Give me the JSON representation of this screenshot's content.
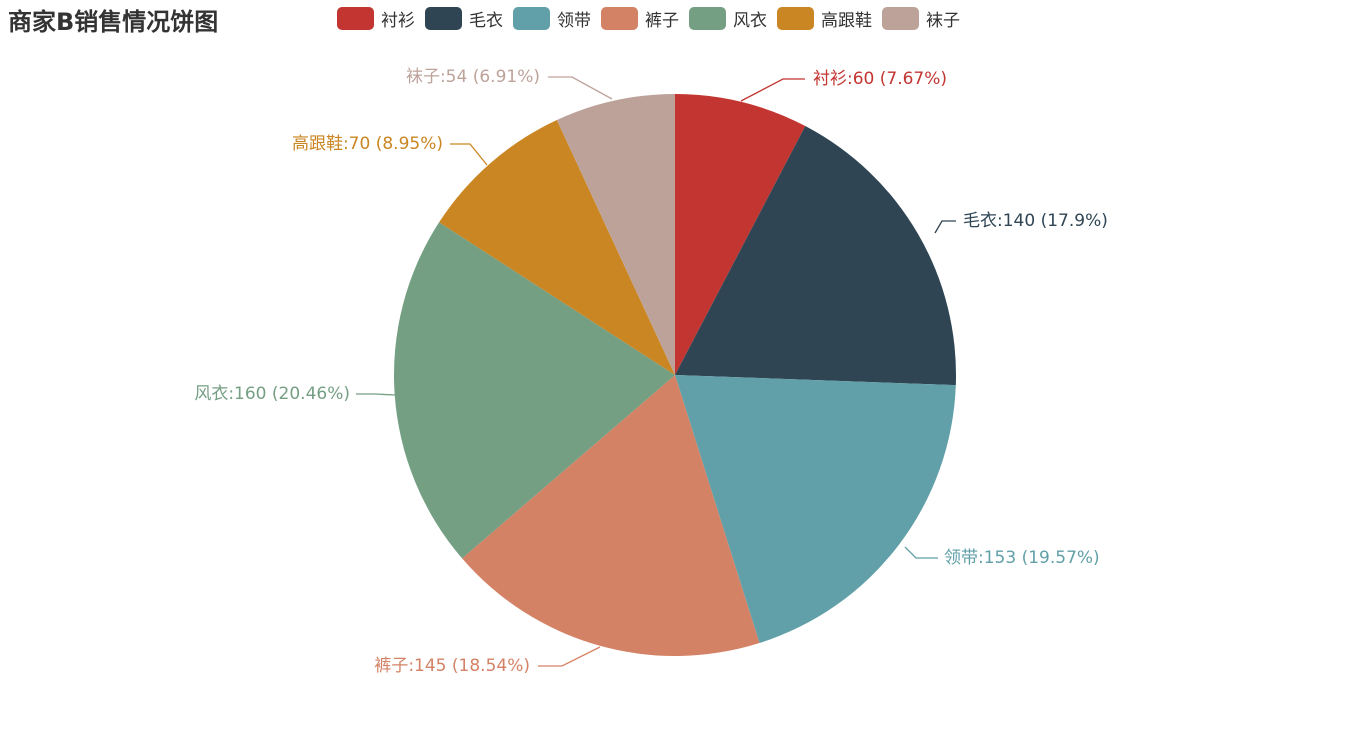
{
  "chart_data": {
    "type": "pie",
    "title": "商家B销售情况饼图",
    "legend_position": "top",
    "categories": [
      "衬衫",
      "毛衣",
      "领带",
      "裤子",
      "风衣",
      "高跟鞋",
      "袜子"
    ],
    "values": [
      60,
      140,
      153,
      145,
      160,
      70,
      54
    ],
    "percents": [
      "7.67%",
      "17.9%",
      "19.57%",
      "18.54%",
      "20.46%",
      "8.95%",
      "6.91%"
    ],
    "colors": [
      "#c23531",
      "#2f4554",
      "#61a0a8",
      "#d48265",
      "#749f83",
      "#ca8622",
      "#bda29a"
    ],
    "labels": [
      "衬衫:60 (7.67%)",
      "毛衣:140 (17.9%)",
      "领带:153 (19.57%)",
      "裤子:145 (18.54%)",
      "风衣:160 (20.46%)",
      "高跟鞋:70 (8.95%)",
      "袜子:54 (6.91%)"
    ]
  }
}
